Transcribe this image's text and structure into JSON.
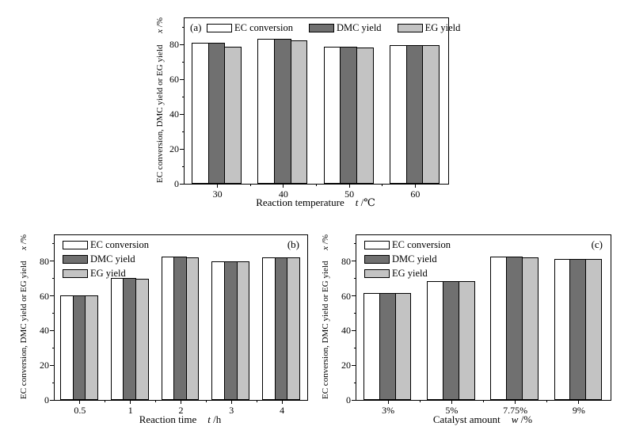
{
  "series_colors": [
    "#ffffff",
    "#707070",
    "#c3c3c3"
  ],
  "legend_labels": [
    "EC conversion",
    "DMC yield",
    "EG yield"
  ],
  "chart_data": [
    {
      "type": "bar",
      "panel": "(a)",
      "categories": [
        "30",
        "40",
        "50",
        "60"
      ],
      "series": [
        {
          "name": "EC conversion",
          "values": [
            81,
            83,
            78.5,
            79.5
          ]
        },
        {
          "name": "DMC yield",
          "values": [
            81,
            83,
            78.5,
            79.5
          ]
        },
        {
          "name": "EG yield",
          "values": [
            78.5,
            82.5,
            78,
            79.5
          ]
        }
      ],
      "xlabel": "Reaction temperature",
      "xlabel_var": "t",
      "xlabel_unit": " /℃",
      "ylabel": "EC conversion, DMC yield or EG yield",
      "ylabel_var": "x",
      "ylabel_unit": " /%",
      "yticks": [
        0,
        20,
        40,
        60,
        80
      ],
      "yminor": [
        10,
        30,
        50,
        70,
        90
      ],
      "ylim": [
        0,
        95
      ],
      "grid": false,
      "legend_orientation": "horizontal",
      "legend_position": "top-inside",
      "panel_position": "top-left"
    },
    {
      "type": "bar",
      "panel": "(b)",
      "categories": [
        "0.5",
        "1",
        "2",
        "3",
        "4"
      ],
      "series": [
        {
          "name": "EC conversion",
          "values": [
            60.5,
            70.5,
            82.5,
            80,
            82
          ]
        },
        {
          "name": "DMC yield",
          "values": [
            60.5,
            70.5,
            82.5,
            80,
            82
          ]
        },
        {
          "name": "EG yield",
          "values": [
            60.5,
            70,
            82,
            80,
            82
          ]
        }
      ],
      "xlabel": "Reaction time",
      "xlabel_var": "t",
      "xlabel_unit": " /h",
      "ylabel": "EC conversion, DMC yield or EG yield",
      "ylabel_var": "x",
      "ylabel_unit": " /%",
      "yticks": [
        0,
        20,
        40,
        60,
        80
      ],
      "yminor": [
        10,
        30,
        50,
        70,
        90
      ],
      "ylim": [
        0,
        95
      ],
      "grid": false,
      "legend_orientation": "vertical",
      "legend_position": "top-left-inside",
      "panel_position": "top-right"
    },
    {
      "type": "bar",
      "panel": "(c)",
      "categories": [
        "3%",
        "5%",
        "7.75%",
        "9%"
      ],
      "series": [
        {
          "name": "EC conversion",
          "values": [
            61.5,
            68.5,
            82.5,
            81.5
          ]
        },
        {
          "name": "DMC yield",
          "values": [
            61.5,
            68.5,
            82.5,
            81.5
          ]
        },
        {
          "name": "EG yield",
          "values": [
            61.5,
            68.5,
            82,
            81.5
          ]
        }
      ],
      "xlabel": "Catalyst amount",
      "xlabel_var": "w",
      "xlabel_unit": " /%",
      "ylabel": "EC conversion, DMC yield or EG yield",
      "ylabel_var": "x",
      "ylabel_unit": " /%",
      "yticks": [
        0,
        20,
        40,
        60,
        80
      ],
      "yminor": [
        10,
        30,
        50,
        70,
        90
      ],
      "ylim": [
        0,
        95
      ],
      "grid": false,
      "legend_orientation": "vertical",
      "legend_position": "top-left-inside",
      "panel_position": "top-right"
    }
  ]
}
